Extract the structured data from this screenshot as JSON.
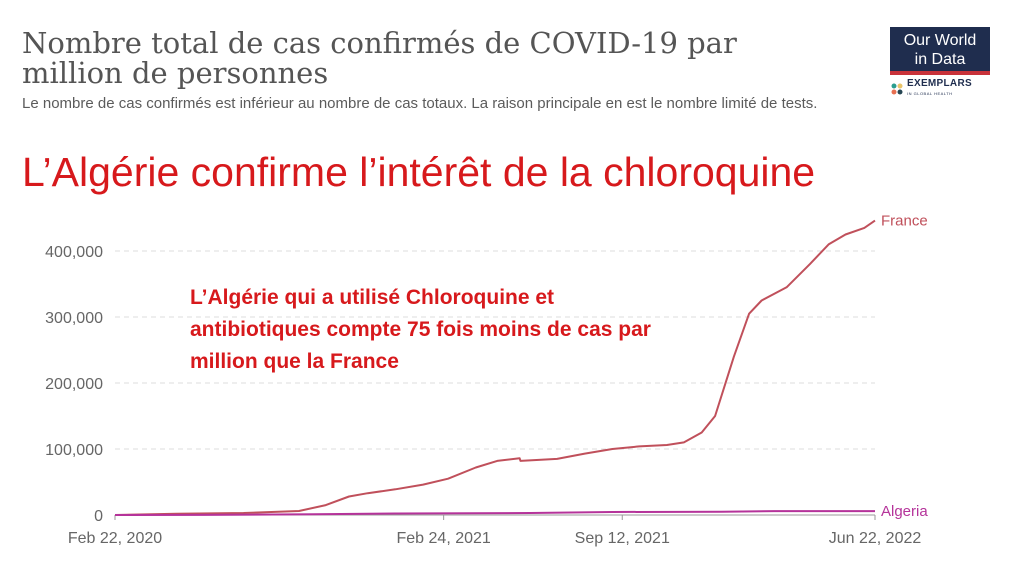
{
  "header": {
    "title": "Nombre total de cas confirmés de COVID-19 par million de personnes",
    "subtitle": "Le nombre de cas confirmés est inférieur au nombre de cas totaux. La raison principale en est le nombre limité de tests."
  },
  "logo": {
    "line1": "Our World",
    "line2": "in Data",
    "partner": "EXEMPLARS",
    "partner_sub": "IN GLOBAL HEALTH"
  },
  "headline": "L’Algérie confirme l’intérêt de la chloroquine",
  "annotation": "L’Algérie qui a utilisé Chloroquine et antibiotiques compte 75 fois moins de cas par million que la France",
  "colors": {
    "france": "#c0505b",
    "algeria": "#b5339a",
    "headline": "#d7191c",
    "grid": "#dddddd"
  },
  "chart_data": {
    "type": "line",
    "title": "Nombre total de cas confirmés de COVID-19 par million de personnes",
    "xlabel": "",
    "ylabel": "",
    "x_ticks": [
      "Feb 22, 2020",
      "Feb 24, 2021",
      "Sep 12, 2021",
      "Jun 22, 2022"
    ],
    "y_ticks": [
      0,
      100000,
      200000,
      300000,
      400000
    ],
    "y_tick_labels": [
      "0",
      "100,000",
      "200,000",
      "300,000",
      "400,000"
    ],
    "xlim": [
      "2020-02-22",
      "2022-06-22"
    ],
    "ylim": [
      0,
      400000
    ],
    "grid": "horizontal dashed",
    "legend": "inline labels at line ends (right)",
    "series": [
      {
        "name": "France",
        "points": [
          [
            "2020-02-22",
            0
          ],
          [
            "2020-05-01",
            2000
          ],
          [
            "2020-07-15",
            3000
          ],
          [
            "2020-09-15",
            6000
          ],
          [
            "2020-10-15",
            15000
          ],
          [
            "2020-11-10",
            28000
          ],
          [
            "2020-12-01",
            33000
          ],
          [
            "2021-01-01",
            39000
          ],
          [
            "2021-02-01",
            46000
          ],
          [
            "2021-03-01",
            55000
          ],
          [
            "2021-04-01",
            72000
          ],
          [
            "2021-04-25",
            82000
          ],
          [
            "2021-05-20",
            86000
          ],
          [
            "2021-05-21",
            82000
          ],
          [
            "2021-07-01",
            85000
          ],
          [
            "2021-08-01",
            93000
          ],
          [
            "2021-09-01",
            100000
          ],
          [
            "2021-10-01",
            104000
          ],
          [
            "2021-11-01",
            106000
          ],
          [
            "2021-11-20",
            110000
          ],
          [
            "2021-12-10",
            125000
          ],
          [
            "2021-12-25",
            150000
          ],
          [
            "2022-01-15",
            240000
          ],
          [
            "2022-02-01",
            305000
          ],
          [
            "2022-02-15",
            325000
          ],
          [
            "2022-03-15",
            345000
          ],
          [
            "2022-04-10",
            380000
          ],
          [
            "2022-05-01",
            410000
          ],
          [
            "2022-05-20",
            425000
          ],
          [
            "2022-06-10",
            435000
          ],
          [
            "2022-06-22",
            446000
          ]
        ]
      },
      {
        "name": "Algeria",
        "points": [
          [
            "2020-02-22",
            0
          ],
          [
            "2020-06-01",
            200
          ],
          [
            "2020-10-01",
            1200
          ],
          [
            "2021-01-01",
            2200
          ],
          [
            "2021-06-01",
            3000
          ],
          [
            "2021-09-01",
            4500
          ],
          [
            "2022-01-01",
            5000
          ],
          [
            "2022-03-01",
            5900
          ],
          [
            "2022-06-22",
            5900
          ]
        ]
      }
    ]
  }
}
